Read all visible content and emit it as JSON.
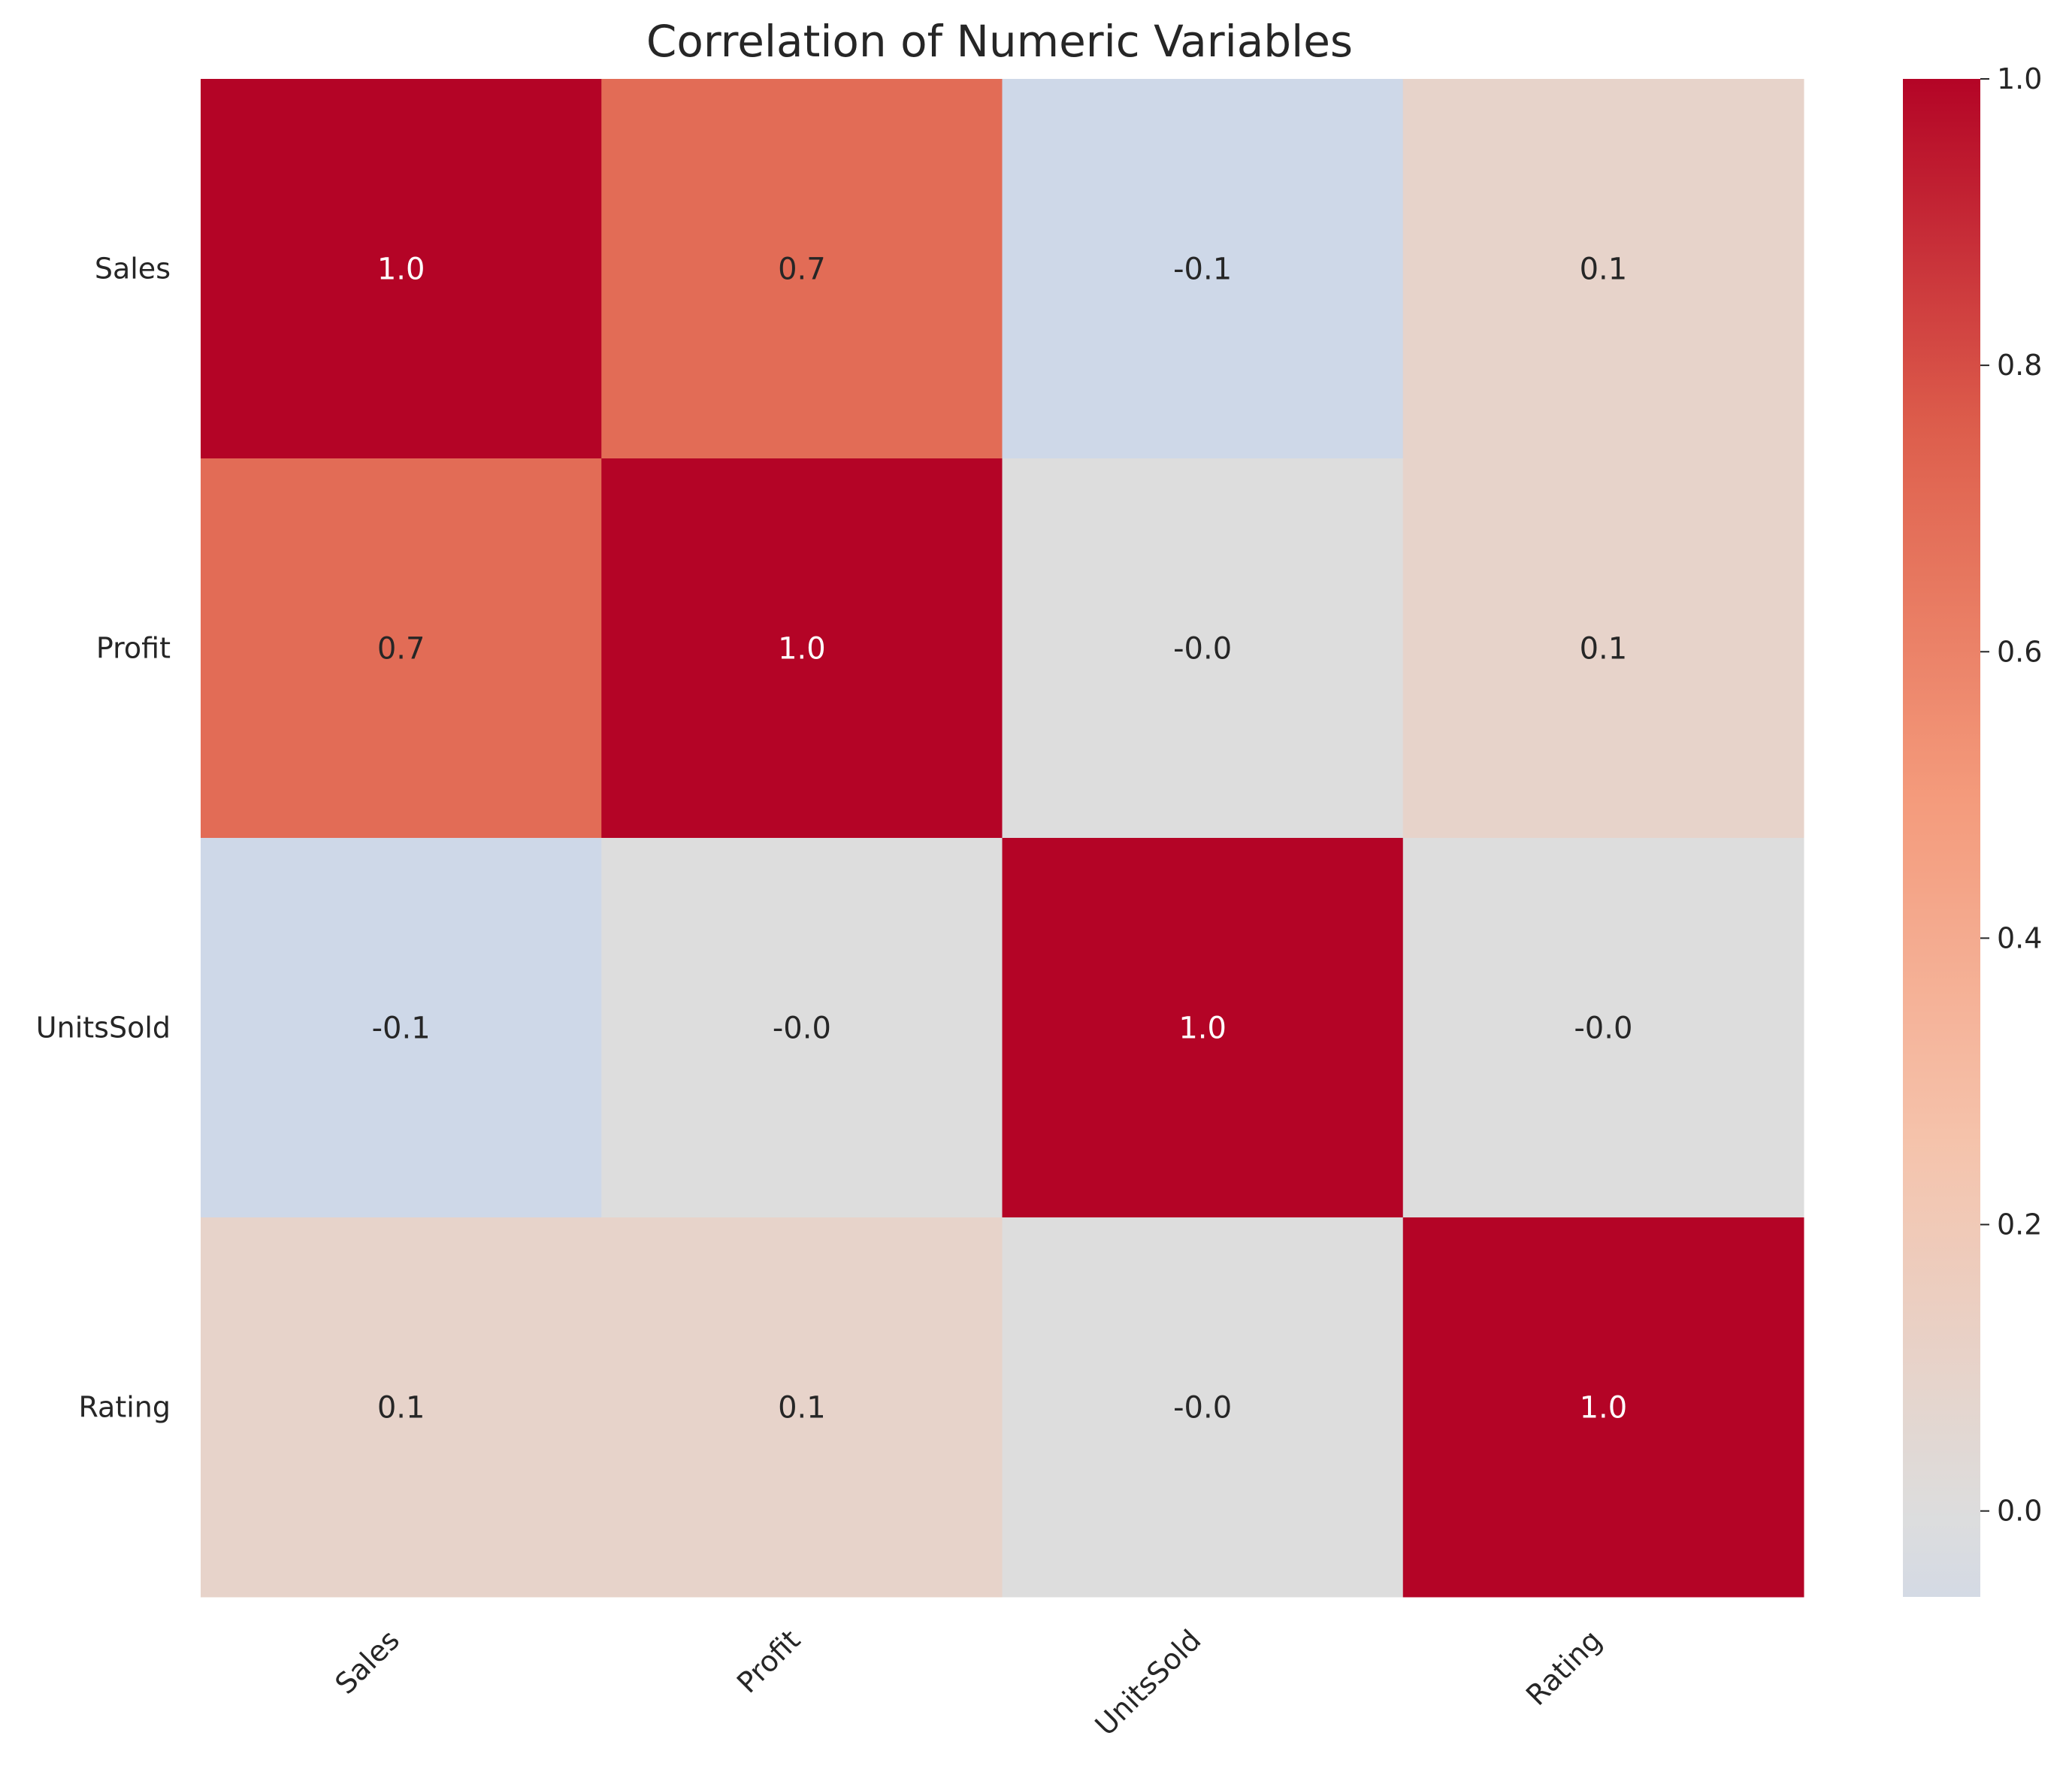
{
  "chart_data": {
    "type": "heatmap",
    "title": "Correlation of Numeric Variables",
    "rows": [
      "Sales",
      "Profit",
      "UnitsSold",
      "Rating"
    ],
    "columns": [
      "Sales",
      "Profit",
      "UnitsSold",
      "Rating"
    ],
    "values": [
      [
        1.0,
        0.7,
        -0.1,
        0.1
      ],
      [
        0.7,
        1.0,
        -0.0,
        0.1
      ],
      [
        -0.1,
        -0.0,
        1.0,
        -0.0
      ],
      [
        0.1,
        0.1,
        -0.0,
        1.0
      ]
    ],
    "cell_labels": [
      [
        "1.0",
        "0.7",
        "-0.1",
        "0.1"
      ],
      [
        "0.7",
        "1.0",
        "-0.0",
        "0.1"
      ],
      [
        "-0.1",
        "-0.0",
        "1.0",
        "-0.0"
      ],
      [
        "0.1",
        "0.1",
        "-0.0",
        "1.0"
      ]
    ],
    "colormap": "coolwarm",
    "colorbar": {
      "range": [
        -0.06,
        1.0
      ],
      "ticks": [
        0.0,
        0.2,
        0.4,
        0.6,
        0.8,
        1.0
      ],
      "tick_labels": [
        "0.0",
        "0.2",
        "0.4",
        "0.6",
        "0.8",
        "1.0"
      ]
    },
    "x_tick_rotation": 45,
    "grid": false
  }
}
